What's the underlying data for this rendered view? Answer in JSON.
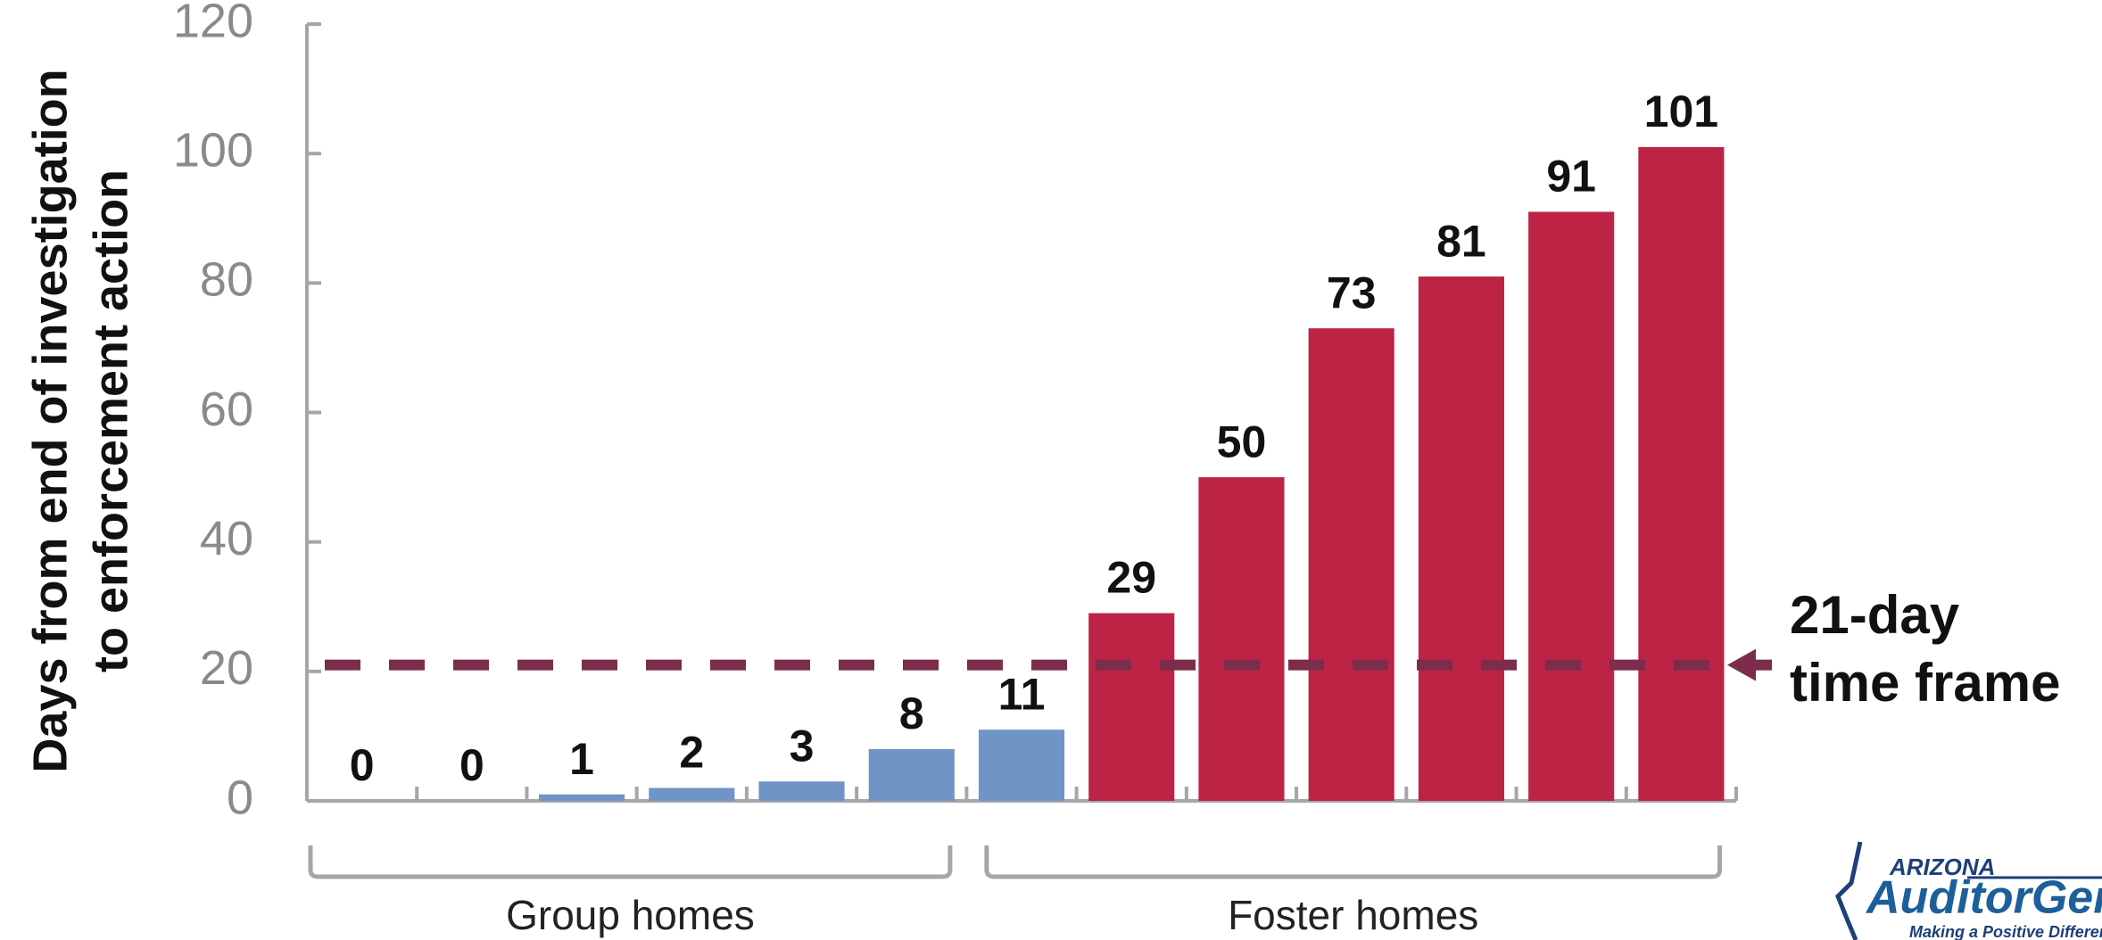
{
  "chart_data": {
    "type": "bar",
    "ylabel": [
      "Days from end of investigation",
      "to enforcement action"
    ],
    "categories": [
      null,
      null,
      null,
      null,
      null,
      null,
      null,
      null,
      null,
      null,
      null,
      null,
      null
    ],
    "values": [
      0,
      0,
      1,
      2,
      3,
      8,
      11,
      29,
      50,
      73,
      81,
      91,
      101
    ],
    "colors": [
      "#7094c5",
      "#7094c5",
      "#7094c5",
      "#7094c5",
      "#7094c5",
      "#7094c5",
      "#7094c5",
      "#bc2345",
      "#bc2345",
      "#bc2345",
      "#bc2345",
      "#bc2345",
      "#bc2345"
    ],
    "ylim": [
      0,
      120
    ],
    "yticks": [
      0,
      20,
      40,
      60,
      80,
      100,
      120
    ],
    "grid": false,
    "groups": [
      "Group homes",
      "Foster homes"
    ],
    "reference_line": {
      "value": 21,
      "color": "#7b2d4b",
      "annotation": [
        "21-day",
        "time frame"
      ]
    }
  },
  "logo": {
    "state": "ARIZONA",
    "name": "AuditorGeneral",
    "tagline": "Making a Positive Difference"
  }
}
